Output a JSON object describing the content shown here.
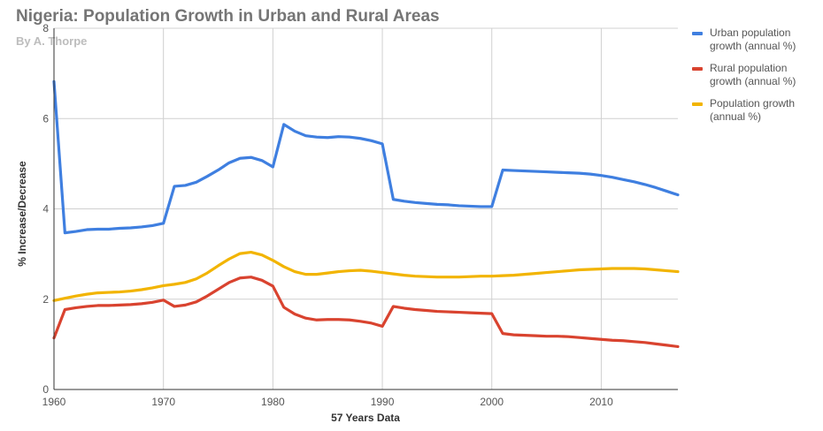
{
  "title": "Nigeria: Population Growth in Urban and Rural Areas",
  "subtitle": "By A. Thorpe",
  "chart_data": {
    "type": "line",
    "xlabel": "57 Years Data",
    "ylabel": "% Increase/Decrease",
    "xlim": [
      1960,
      2017
    ],
    "ylim": [
      0,
      8
    ],
    "x_ticks": [
      1960,
      1970,
      1980,
      1990,
      2000,
      2010
    ],
    "y_ticks": [
      0,
      2,
      4,
      6,
      8
    ],
    "grid": true,
    "legend_position": "right",
    "x": [
      1960,
      1961,
      1962,
      1963,
      1964,
      1965,
      1966,
      1967,
      1968,
      1969,
      1970,
      1971,
      1972,
      1973,
      1974,
      1975,
      1976,
      1977,
      1978,
      1979,
      1980,
      1981,
      1982,
      1983,
      1984,
      1985,
      1986,
      1987,
      1988,
      1989,
      1990,
      1991,
      1992,
      1993,
      1994,
      1995,
      1996,
      1997,
      1998,
      1999,
      2000,
      2001,
      2002,
      2003,
      2004,
      2005,
      2006,
      2007,
      2008,
      2009,
      2010,
      2011,
      2012,
      2013,
      2014,
      2015,
      2016,
      2017
    ],
    "series": [
      {
        "name": "Urban population growth (annual %)",
        "color": "#3f7fe0",
        "values": [
          6.82,
          3.47,
          3.5,
          3.54,
          3.55,
          3.55,
          3.57,
          3.58,
          3.6,
          3.63,
          3.68,
          4.5,
          4.52,
          4.59,
          4.72,
          4.86,
          5.02,
          5.12,
          5.14,
          5.07,
          4.93,
          5.87,
          5.72,
          5.62,
          5.59,
          5.58,
          5.6,
          5.59,
          5.56,
          5.51,
          5.44,
          4.21,
          4.17,
          4.14,
          4.12,
          4.1,
          4.09,
          4.07,
          4.06,
          4.05,
          4.05,
          4.86,
          4.85,
          4.84,
          4.83,
          4.82,
          4.81,
          4.8,
          4.79,
          4.77,
          4.74,
          4.7,
          4.65,
          4.6,
          4.54,
          4.47,
          4.39,
          4.31
        ]
      },
      {
        "name": "Rural population growth (annual %)",
        "color": "#d9432f",
        "values": [
          1.14,
          1.77,
          1.81,
          1.84,
          1.86,
          1.86,
          1.87,
          1.88,
          1.9,
          1.93,
          1.98,
          1.84,
          1.87,
          1.94,
          2.07,
          2.22,
          2.37,
          2.47,
          2.49,
          2.42,
          2.29,
          1.82,
          1.67,
          1.58,
          1.54,
          1.55,
          1.55,
          1.54,
          1.51,
          1.47,
          1.4,
          1.84,
          1.8,
          1.77,
          1.75,
          1.73,
          1.72,
          1.71,
          1.7,
          1.69,
          1.68,
          1.24,
          1.21,
          1.2,
          1.19,
          1.18,
          1.18,
          1.17,
          1.15,
          1.13,
          1.11,
          1.09,
          1.08,
          1.06,
          1.04,
          1.01,
          0.98,
          0.95
        ]
      },
      {
        "name": "Population growth (annual %)",
        "color": "#f2b400",
        "values": [
          1.97,
          2.02,
          2.07,
          2.11,
          2.14,
          2.15,
          2.16,
          2.18,
          2.21,
          2.25,
          2.3,
          2.33,
          2.37,
          2.45,
          2.58,
          2.74,
          2.89,
          3.01,
          3.04,
          2.98,
          2.86,
          2.72,
          2.61,
          2.55,
          2.55,
          2.58,
          2.61,
          2.63,
          2.64,
          2.62,
          2.59,
          2.56,
          2.53,
          2.51,
          2.5,
          2.49,
          2.49,
          2.49,
          2.5,
          2.51,
          2.51,
          2.52,
          2.53,
          2.55,
          2.57,
          2.59,
          2.61,
          2.63,
          2.65,
          2.66,
          2.67,
          2.68,
          2.68,
          2.68,
          2.67,
          2.65,
          2.63,
          2.61
        ]
      }
    ]
  }
}
